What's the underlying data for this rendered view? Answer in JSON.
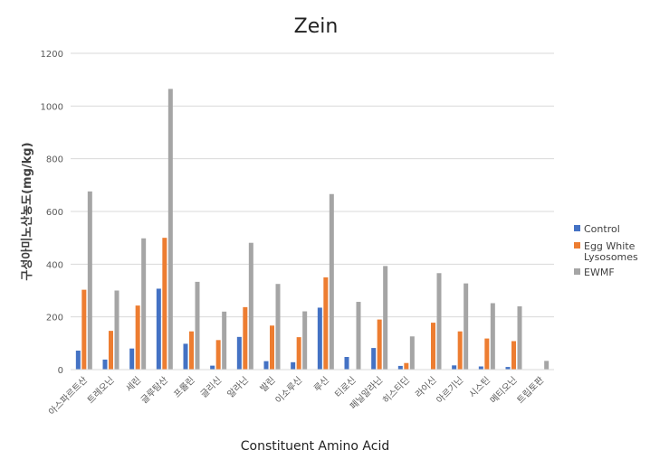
{
  "chart_data": {
    "type": "bar",
    "title": "Zein",
    "xlabel": "Constituent Amino Acid",
    "ylabel": "구성아미노산농도(mg/kg)",
    "ylim": [
      0,
      1200
    ],
    "yticks": [
      "0",
      "200",
      "400",
      "600",
      "800",
      "1000",
      "1200"
    ],
    "grid": true,
    "legend_position": "right",
    "categories": [
      "아스파르트산",
      "트레오닌",
      "세린",
      "글루탐산",
      "프롤린",
      "글리신",
      "알라닌",
      "발린",
      "이소루신",
      "루신",
      "티로신",
      "페닐알라닌",
      "히스티딘",
      "라이신",
      "아르기닌",
      "시스틴",
      "메티오닌",
      "트립토판"
    ],
    "series": [
      {
        "name": "Control",
        "color": "#4472c4",
        "values": [
          72,
          38,
          80,
          307,
          98,
          15,
          124,
          32,
          28,
          235,
          48,
          82,
          14,
          0,
          16,
          12,
          10,
          0
        ]
      },
      {
        "name": "Egg White Lysosomes",
        "color": "#ed7d31",
        "values": [
          303,
          147,
          243,
          500,
          145,
          112,
          237,
          167,
          123,
          350,
          0,
          190,
          25,
          178,
          145,
          118,
          108,
          0
        ]
      },
      {
        "name": "EWMF",
        "color": "#a5a5a5",
        "values": [
          676,
          300,
          498,
          1065,
          333,
          220,
          481,
          325,
          221,
          666,
          257,
          393,
          126,
          366,
          327,
          252,
          240,
          33
        ]
      }
    ]
  }
}
